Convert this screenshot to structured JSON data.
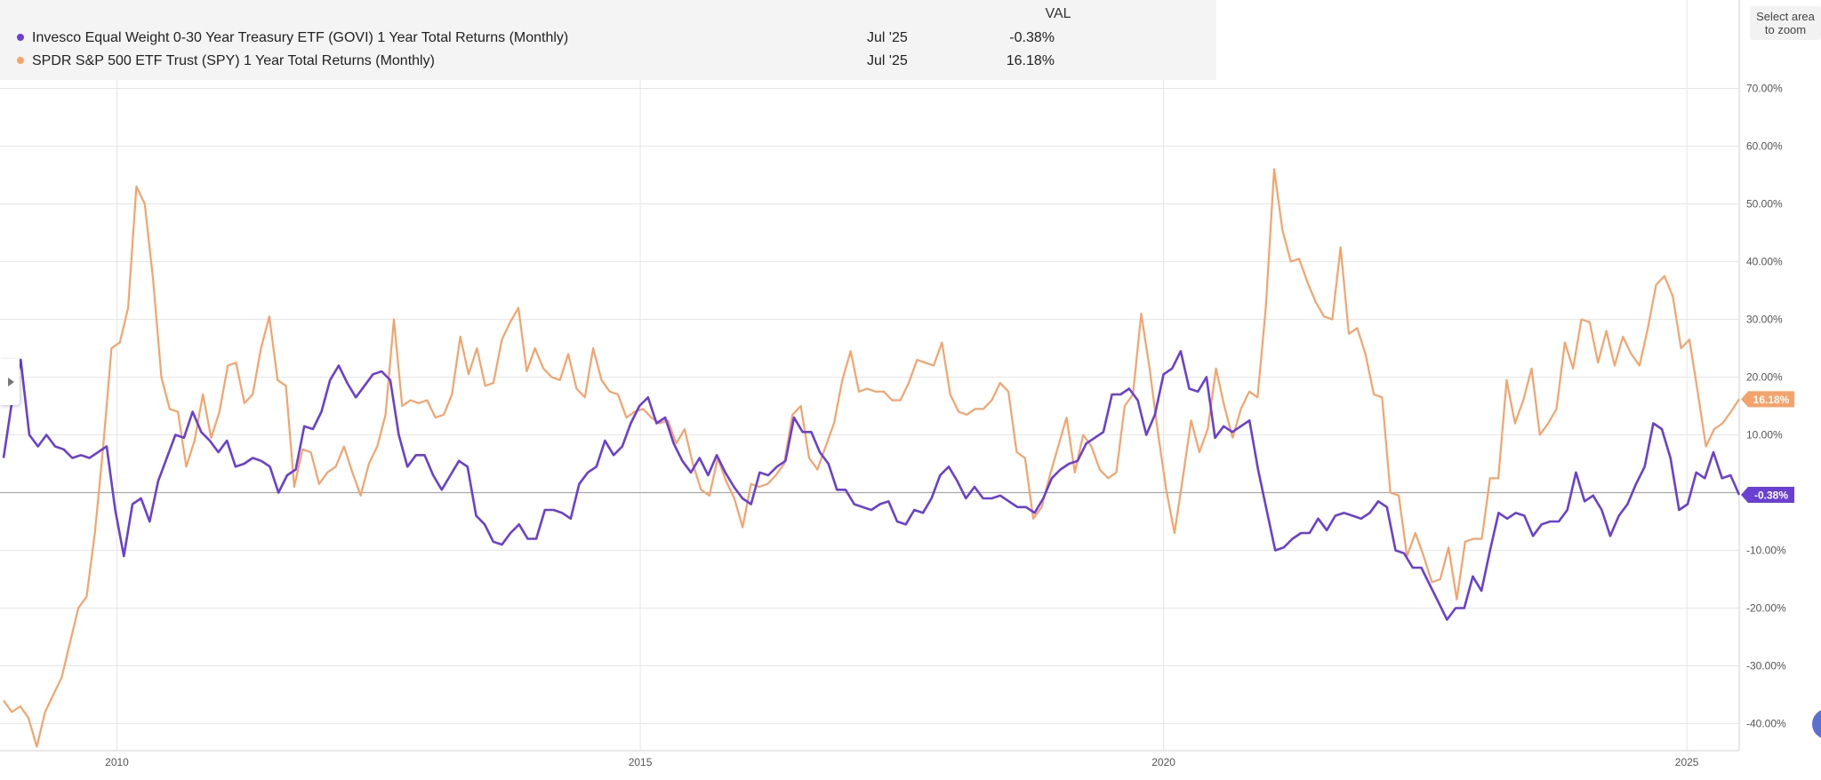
{
  "legend": {
    "header": "VAL",
    "rows": [
      {
        "name": "Invesco Equal Weight 0-30 Year Treasury ETF (GOVI) 1 Year Total Returns (Monthly)",
        "date": "Jul '25",
        "value": "-0.38%",
        "color": "#6a3fd3"
      },
      {
        "name": "SPDR S&P 500 ETF Trust (SPY) 1 Year Total Returns (Monthly)",
        "date": "Jul '25",
        "value": "16.18%",
        "color": "#f6a36b"
      }
    ]
  },
  "zoom_button": {
    "line1": "Select area",
    "line2": "to zoom"
  },
  "chart_data": {
    "type": "line",
    "x_start": "2008-12",
    "x_end": "2025-07",
    "x_frequency": "monthly",
    "x_ticks": [
      "2010",
      "2015",
      "2020",
      "2025"
    ],
    "ylim": [
      -45,
      72
    ],
    "y_ticks": [
      -40,
      -30,
      -20,
      -10,
      0,
      10,
      20,
      30,
      40,
      50,
      60,
      70
    ],
    "y_tick_labels": [
      "-40.00%",
      "-30.00%",
      "-20.00%",
      "-10.00%",
      "0.00%",
      "10.00%",
      "20.00%",
      "30.00%",
      "40.00%",
      "50.00%",
      "60.00%",
      "70.00%"
    ],
    "grid": true,
    "legend_position": "top-left",
    "series": [
      {
        "name": "Invesco Equal Weight 0-30 Year Treasury ETF (GOVI) 1 Year Total Returns (Monthly)",
        "color": "#6a3fd3",
        "last_value_label": "-0.38%",
        "values": [
          6,
          16,
          23,
          10,
          8,
          10,
          8,
          7.5,
          6,
          6.5,
          6,
          7,
          8,
          -3,
          -11,
          -2,
          -1,
          -5,
          2,
          6,
          10,
          9.5,
          14,
          10.5,
          9,
          7,
          9,
          4.5,
          5,
          6,
          5.5,
          4.5,
          0,
          3,
          4,
          11.5,
          11,
          14,
          19.5,
          22,
          19,
          16.5,
          18.5,
          20.5,
          21,
          19.5,
          10,
          4.5,
          6.5,
          6.5,
          3,
          0.5,
          3,
          5.5,
          4.5,
          -4,
          -5.5,
          -8.5,
          -9,
          -7,
          -5.5,
          -8,
          -8,
          -3,
          -3,
          -3.5,
          -4.5,
          1.5,
          3.5,
          4.5,
          9,
          6.5,
          8,
          12,
          15,
          16.5,
          12,
          13,
          8.5,
          5.5,
          3.5,
          6,
          3,
          6.5,
          3.5,
          1,
          -1,
          -2,
          3.5,
          3,
          4.5,
          5.5,
          13,
          10.5,
          10.5,
          7,
          5,
          0.5,
          0.5,
          -2,
          -2.5,
          -3,
          -2,
          -1.5,
          -5,
          -5.5,
          -3,
          -3.5,
          -1,
          3,
          4.5,
          2,
          -1,
          1,
          -1,
          -1,
          -0.5,
          -1.5,
          -2.5,
          -2.5,
          -3.5,
          -1,
          2.5,
          4,
          5,
          5.5,
          8.5,
          9.5,
          10.5,
          17,
          17,
          18,
          16,
          10,
          13.5,
          20.5,
          21.5,
          24.5,
          18,
          17.5,
          20,
          9.5,
          11.5,
          10.5,
          11.5,
          12.5,
          4,
          -3,
          -10,
          -9.5,
          -8,
          -7,
          -7,
          -4.5,
          -6.5,
          -4,
          -3.5,
          -4,
          -4.5,
          -3.5,
          -1.5,
          -2.5,
          -10,
          -10.5,
          -13,
          -13,
          -16,
          -19,
          -22,
          -20,
          -20,
          -14.5,
          -17,
          -10,
          -3.5,
          -4.5,
          -3.5,
          -4,
          -7.5,
          -5.5,
          -5,
          -5,
          -3,
          3.5,
          -1.5,
          -0.5,
          -3,
          -7.5,
          -4,
          -2,
          1.5,
          4.5,
          12,
          11,
          6,
          -3,
          -2,
          3.5,
          2.5,
          7,
          2.5,
          3,
          -0.38
        ]
      },
      {
        "name": "SPDR S&P 500 ETF Trust (SPY) 1 Year Total Returns (Monthly)",
        "color": "#f6a36b",
        "last_value_label": "16.18%",
        "values": [
          -36,
          -38,
          -37,
          -39,
          -44,
          -38,
          -35,
          -32,
          -26,
          -20,
          -18,
          -7,
          8,
          25,
          26,
          32,
          53,
          50,
          37,
          20,
          14.5,
          14,
          4.5,
          9,
          17,
          9.5,
          14,
          22,
          22.5,
          15.5,
          17,
          25,
          30.5,
          19.5,
          18.5,
          1,
          7.5,
          7,
          1.5,
          3.5,
          4.5,
          8,
          3.5,
          -0.5,
          5,
          8,
          13.5,
          30,
          15,
          16,
          15.5,
          16,
          13,
          13.5,
          17,
          27,
          20.5,
          25,
          18.5,
          19,
          26.5,
          29.5,
          32,
          21,
          25,
          21.5,
          20,
          19.5,
          24,
          18,
          16.5,
          25,
          19.5,
          17.5,
          17,
          13,
          14,
          14.5,
          13,
          12,
          12.5,
          8.5,
          11,
          5,
          0.5,
          -0.5,
          6,
          2,
          -1,
          -6,
          1.5,
          1,
          1.5,
          3,
          5,
          13.5,
          15,
          6,
          4,
          8,
          12,
          19.5,
          24.5,
          17.5,
          18,
          17.5,
          17.5,
          16,
          16,
          19,
          23,
          22.5,
          22,
          26,
          17,
          14,
          13.5,
          14.5,
          14.5,
          16,
          19,
          17.5,
          7,
          6,
          -4.5,
          -2.5,
          3,
          8,
          13,
          3.5,
          10,
          8,
          4,
          2.5,
          3.5,
          15,
          17,
          31,
          21.5,
          10.5,
          0.5,
          -7,
          2.5,
          12.5,
          7,
          11,
          21.5,
          15,
          9.5,
          14.5,
          17.5,
          16.5,
          32,
          56,
          45.5,
          40,
          40.5,
          36.5,
          33,
          30.5,
          30,
          42.5,
          27.5,
          28.5,
          24,
          17,
          16.5,
          0,
          -0.5,
          -11,
          -7,
          -11,
          -15.5,
          -15,
          -9.5,
          -18.5,
          -8.5,
          -8,
          -8,
          2.5,
          2.5,
          19.5,
          12,
          16,
          21.5,
          10,
          12,
          14.5,
          26,
          21.5,
          30,
          29.5,
          22.5,
          28,
          22,
          27,
          24,
          22,
          28.5,
          36,
          37.5,
          34,
          25,
          26.5,
          17.5,
          8,
          11,
          12,
          14,
          16.18
        ]
      }
    ]
  }
}
